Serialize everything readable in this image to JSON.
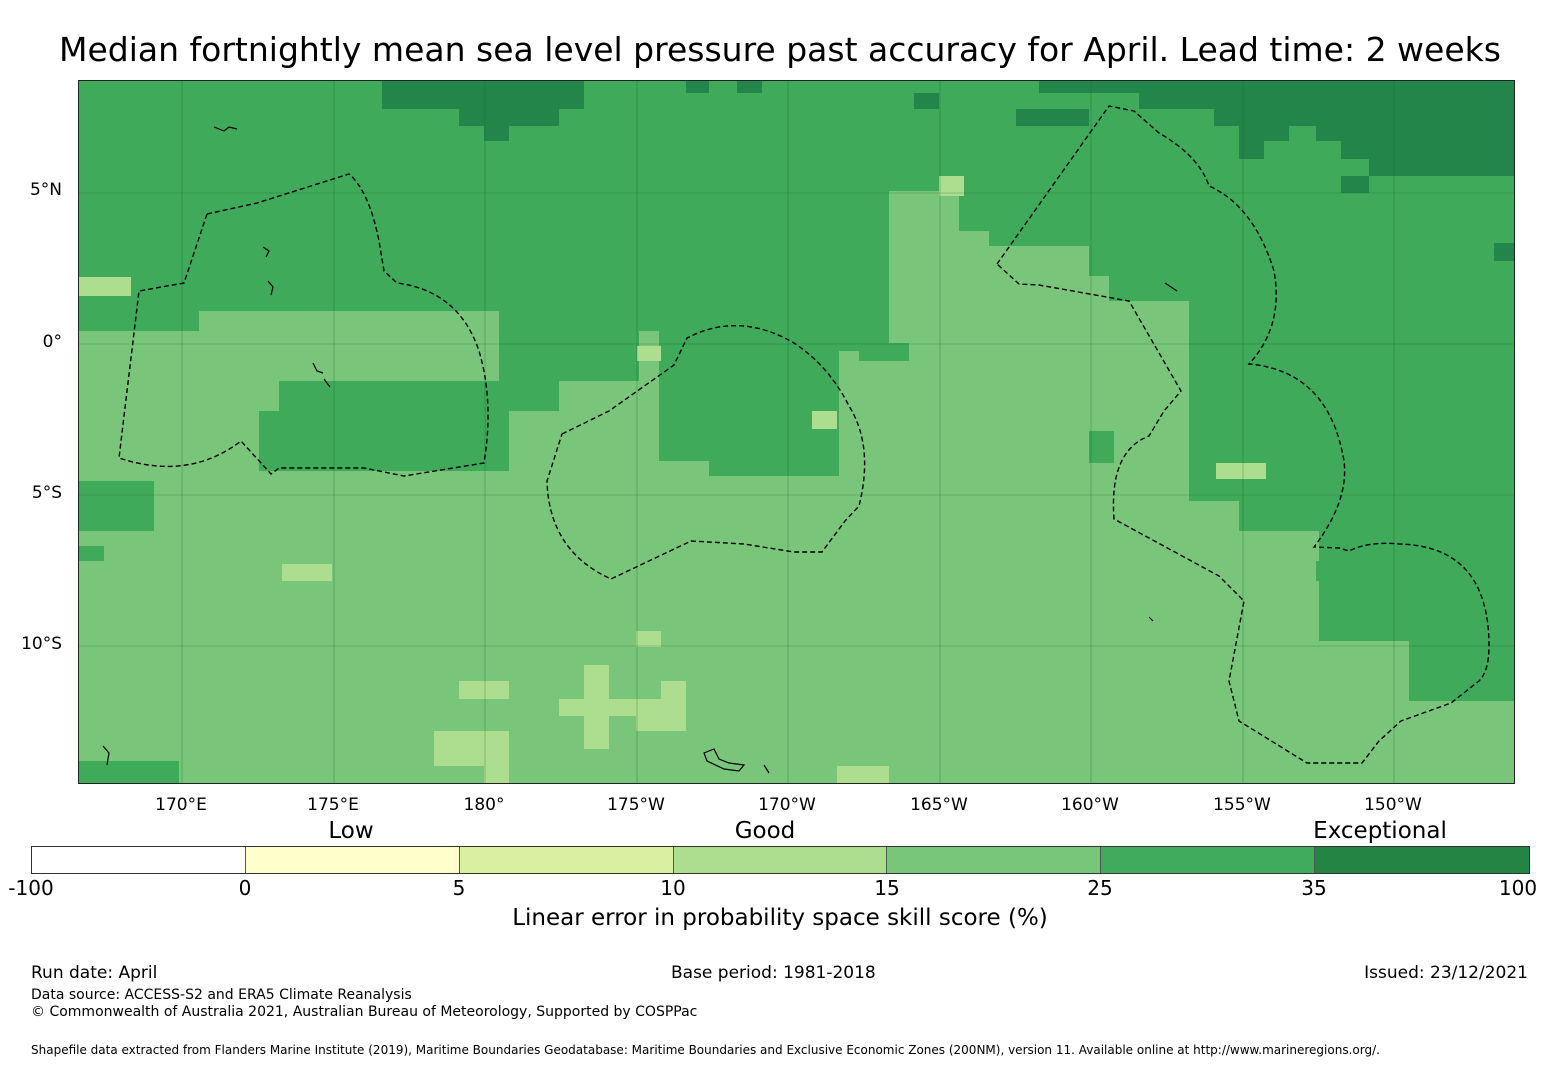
{
  "title": "Median fortnightly mean sea level pressure past accuracy for April. Lead time: 2 weeks",
  "map": {
    "lat_labels": [
      "5°N",
      "0°",
      "5°S",
      "10°S"
    ],
    "lon_labels": [
      "170°E",
      "175°E",
      "180°",
      "175°W",
      "170°W",
      "165°W",
      "160°W",
      "155°W",
      "150°W"
    ],
    "colors": {
      "dark": "#23854a",
      "medium": "#3eaa5a",
      "light": "#79c67a",
      "lighter": "#addd8e",
      "grid": "#1b5e2e",
      "boundary": "#000000"
    }
  },
  "legend": {
    "category_labels": [
      "Low",
      "Good",
      "Exceptional"
    ],
    "bins": [
      {
        "from": -100,
        "to": 0,
        "color": "#ffffff"
      },
      {
        "from": 0,
        "to": 5,
        "color": "#ffffcc"
      },
      {
        "from": 5,
        "to": 10,
        "color": "#d9f0a3"
      },
      {
        "from": 10,
        "to": 15,
        "color": "#addd8e"
      },
      {
        "from": 15,
        "to": 25,
        "color": "#78c679"
      },
      {
        "from": 25,
        "to": 35,
        "color": "#41ab5d"
      },
      {
        "from": 35,
        "to": 100,
        "color": "#238443"
      }
    ],
    "ticks": [
      "-100",
      "0",
      "5",
      "10",
      "15",
      "25",
      "35",
      "100"
    ],
    "label": "Linear error in probability space skill score (%)"
  },
  "footer": {
    "run_date": "Run date: April",
    "base_period": "Base period: 1981-2018",
    "issued": "Issued: 23/12/2021",
    "data_source": "Data source: ACCESS-S2 and ERA5 Climate Reanalysis",
    "copyright": "© Commonwealth of Australia 2021, Australian Bureau of Meteorology, Supported by COSPPac",
    "shapefile": "Shapefile data extracted from Flanders Marine Institute (2019), Maritime Boundaries Geodatabase: Maritime Boundaries and Exclusive Economic Zones (200NM), version 11. Available online at http://www.marineregions.org/."
  }
}
